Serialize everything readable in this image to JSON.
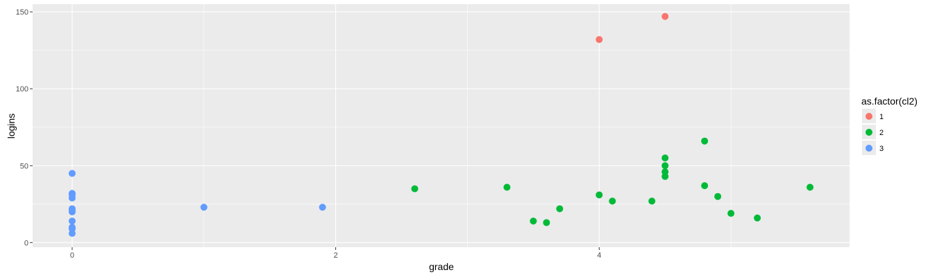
{
  "chart_data": {
    "type": "scatter",
    "xlabel": "grade",
    "ylabel": "logins",
    "xlim": [
      -0.3,
      5.9
    ],
    "ylim": [
      -3,
      155
    ],
    "xticks": [
      0,
      2,
      4
    ],
    "yticks": [
      0,
      50,
      100,
      150
    ],
    "grid": true,
    "legend": {
      "title": "as.factor(cl2)",
      "position": "right",
      "entries": [
        {
          "label": "1",
          "color": "#F8766D"
        },
        {
          "label": "2",
          "color": "#00BA38"
        },
        {
          "label": "3",
          "color": "#619CFF"
        }
      ]
    },
    "series": [
      {
        "name": "1",
        "color": "#F8766D",
        "points": [
          [
            4.0,
            132
          ],
          [
            4.5,
            147
          ]
        ]
      },
      {
        "name": "2",
        "color": "#00BA38",
        "points": [
          [
            2.6,
            35
          ],
          [
            3.3,
            36
          ],
          [
            3.5,
            14
          ],
          [
            3.6,
            13
          ],
          [
            3.7,
            22
          ],
          [
            4.0,
            31
          ],
          [
            4.1,
            27
          ],
          [
            4.4,
            27
          ],
          [
            4.5,
            55
          ],
          [
            4.5,
            50
          ],
          [
            4.5,
            46
          ],
          [
            4.5,
            43
          ],
          [
            4.8,
            66
          ],
          [
            4.8,
            37
          ],
          [
            4.9,
            30
          ],
          [
            5.0,
            19
          ],
          [
            5.2,
            16
          ],
          [
            5.6,
            36
          ]
        ]
      },
      {
        "name": "3",
        "color": "#619CFF",
        "points": [
          [
            0,
            45
          ],
          [
            0,
            32
          ],
          [
            0,
            31
          ],
          [
            0,
            29
          ],
          [
            0,
            22
          ],
          [
            0,
            21
          ],
          [
            0,
            20
          ],
          [
            0,
            14
          ],
          [
            0,
            10
          ],
          [
            0,
            9
          ],
          [
            0,
            6
          ],
          [
            1.0,
            23
          ],
          [
            1.9,
            23
          ]
        ]
      }
    ]
  }
}
